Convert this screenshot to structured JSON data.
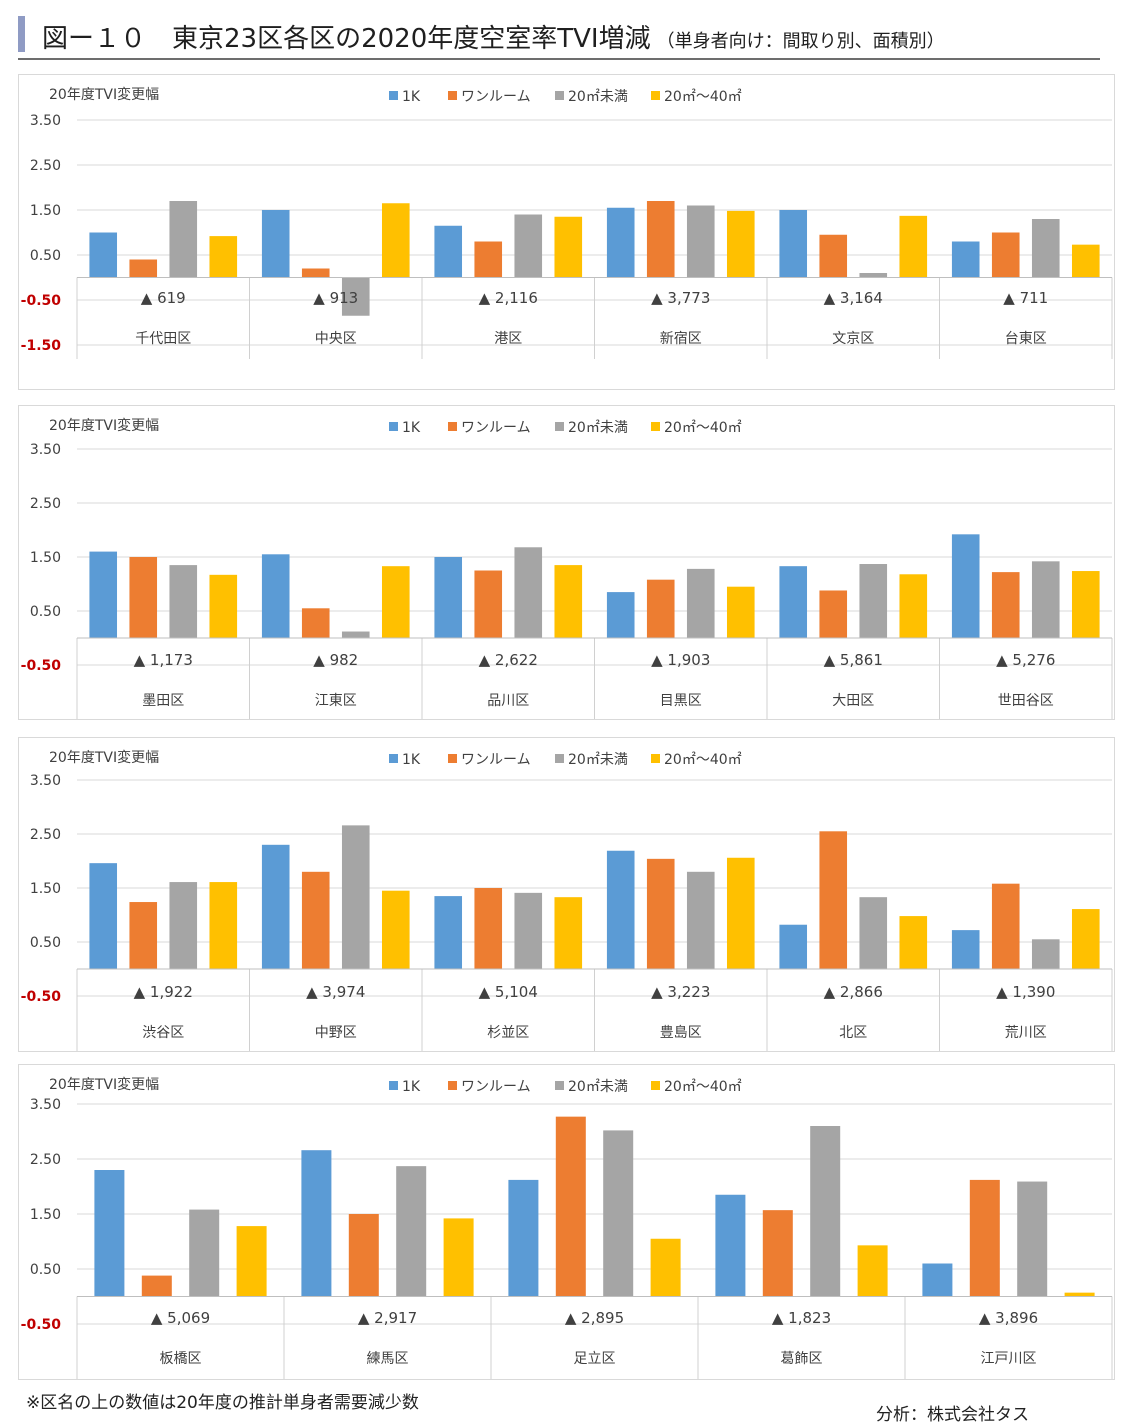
{
  "header": {
    "title": "図ー１０　東京23区各区の2020年度空室率TVI増減",
    "subtitle": "（単身者向け：間取り別、面積別）"
  },
  "footnote": "※区名の上の数値は20年度の推計単身者需要減少数",
  "credit": "分析：株式会社タス",
  "colors": {
    "1K": "#5b9bd5",
    "oneroom": "#ed7d31",
    "under20": "#a5a5a5",
    "20to40": "#ffc000",
    "negative_tick": "#c00000"
  },
  "chart_data": [
    {
      "type": "bar",
      "ylabel": "20年度TVI変更幅",
      "ylim": [
        -1.5,
        3.5
      ],
      "yticks": [
        "3.50",
        "2.50",
        "1.50",
        "0.50",
        "-0.50",
        "-1.50"
      ],
      "tick_values": [
        3.5,
        2.5,
        1.5,
        0.5,
        -0.5,
        -1.5
      ],
      "legend": [
        "1K",
        "ワンルーム",
        "20㎡未満",
        "20㎡～40㎡"
      ],
      "categories": [
        "千代田区",
        "中央区",
        "港区",
        "新宿区",
        "文京区",
        "台東区"
      ],
      "demand_decrease": [
        "▲ 619",
        "▲ 913",
        "▲ 2,116",
        "▲ 3,773",
        "▲ 3,164",
        "▲ 711"
      ],
      "series": [
        {
          "name": "1K",
          "values": [
            1.0,
            1.5,
            1.15,
            1.55,
            1.5,
            0.8
          ]
        },
        {
          "name": "ワンルーム",
          "values": [
            0.4,
            0.2,
            0.8,
            1.7,
            0.95,
            1.0
          ]
        },
        {
          "name": "20㎡未満",
          "values": [
            1.7,
            -0.85,
            1.4,
            1.6,
            0.1,
            1.3
          ]
        },
        {
          "name": "20㎡～40㎡",
          "values": [
            0.92,
            1.65,
            1.35,
            1.48,
            1.37,
            0.73
          ]
        }
      ]
    },
    {
      "type": "bar",
      "ylabel": "20年度TVI変更幅",
      "ylim": [
        -0.5,
        3.5
      ],
      "yticks": [
        "3.50",
        "2.50",
        "1.50",
        "0.50",
        "-0.50"
      ],
      "tick_values": [
        3.5,
        2.5,
        1.5,
        0.5,
        -0.5
      ],
      "legend": [
        "1K",
        "ワンルーム",
        "20㎡未満",
        "20㎡～40㎡"
      ],
      "categories": [
        "墨田区",
        "江東区",
        "品川区",
        "目黒区",
        "大田区",
        "世田谷区"
      ],
      "demand_decrease": [
        "▲ 1,173",
        "▲ 982",
        "▲ 2,622",
        "▲ 1,903",
        "▲ 5,861",
        "▲ 5,276"
      ],
      "series": [
        {
          "name": "1K",
          "values": [
            1.6,
            1.55,
            1.5,
            0.85,
            1.33,
            1.92
          ]
        },
        {
          "name": "ワンルーム",
          "values": [
            1.5,
            0.55,
            1.25,
            1.08,
            0.88,
            1.22
          ]
        },
        {
          "name": "20㎡未満",
          "values": [
            1.35,
            0.12,
            1.68,
            1.28,
            1.37,
            1.42
          ]
        },
        {
          "name": "20㎡～40㎡",
          "values": [
            1.17,
            1.33,
            1.35,
            0.95,
            1.18,
            1.24
          ]
        }
      ]
    },
    {
      "type": "bar",
      "ylabel": "20年度TVI変更幅",
      "ylim": [
        -0.5,
        3.5
      ],
      "yticks": [
        "3.50",
        "2.50",
        "1.50",
        "0.50",
        "-0.50"
      ],
      "tick_values": [
        3.5,
        2.5,
        1.5,
        0.5,
        -0.5
      ],
      "legend": [
        "1K",
        "ワンルーム",
        "20㎡未満",
        "20㎡～40㎡"
      ],
      "categories": [
        "渋谷区",
        "中野区",
        "杉並区",
        "豊島区",
        "北区",
        "荒川区"
      ],
      "demand_decrease": [
        "▲ 1,922",
        "▲ 3,974",
        "▲ 5,104",
        "▲ 3,223",
        "▲ 2,866",
        "▲ 1,390"
      ],
      "series": [
        {
          "name": "1K",
          "values": [
            1.96,
            2.3,
            1.35,
            2.19,
            0.82,
            0.72
          ]
        },
        {
          "name": "ワンルーム",
          "values": [
            1.24,
            1.8,
            1.5,
            2.04,
            2.55,
            1.58
          ]
        },
        {
          "name": "20㎡未満",
          "values": [
            1.61,
            2.66,
            1.41,
            1.8,
            1.33,
            0.55
          ]
        },
        {
          "name": "20㎡～40㎡",
          "values": [
            1.61,
            1.45,
            1.33,
            2.06,
            0.98,
            1.11
          ]
        }
      ]
    },
    {
      "type": "bar",
      "ylabel": "20年度TVI変更幅",
      "ylim": [
        -0.5,
        3.5
      ],
      "yticks": [
        "3.50",
        "2.50",
        "1.50",
        "0.50",
        "-0.50"
      ],
      "tick_values": [
        3.5,
        2.5,
        1.5,
        0.5,
        -0.5
      ],
      "legend": [
        "1K",
        "ワンルーム",
        "20㎡未満",
        "20㎡～40㎡"
      ],
      "categories": [
        "板橋区",
        "練馬区",
        "足立区",
        "葛飾区",
        "江戸川区"
      ],
      "demand_decrease": [
        "▲ 5,069",
        "▲ 2,917",
        "▲ 2,895",
        "▲ 1,823",
        "▲ 3,896"
      ],
      "series": [
        {
          "name": "1K",
          "values": [
            2.3,
            2.66,
            2.12,
            1.85,
            0.6
          ]
        },
        {
          "name": "ワンルーム",
          "values": [
            0.38,
            1.5,
            3.27,
            1.57,
            2.12
          ]
        },
        {
          "name": "20㎡未満",
          "values": [
            1.58,
            2.37,
            3.02,
            3.1,
            2.09
          ]
        },
        {
          "name": "20㎡～40㎡",
          "values": [
            1.28,
            1.42,
            1.05,
            0.93,
            0.07
          ]
        }
      ]
    }
  ]
}
